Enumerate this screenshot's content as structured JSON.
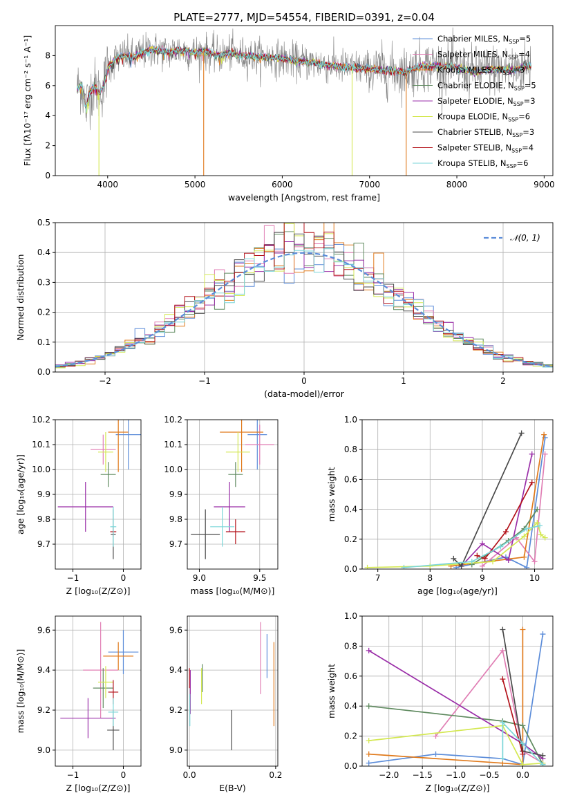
{
  "figure_title": "PLATE=2777, MJD=54554, FIBERID=0391, z=0.04",
  "model_colors": {
    "Chabrier MILES": "#5b8cd9",
    "Salpeter MILES": "#e07eb4",
    "Kroupa MILES": "#e07a1c",
    "Chabrier ELODIE": "#5f8a5f",
    "Salpeter ELODIE": "#9a2ea8",
    "Kroupa ELODIE": "#d4e852",
    "Chabrier STELIB": "#4a4a4a",
    "Salpeter STELIB": "#b3121a",
    "Kroupa STELIB": "#7ad6d8",
    "data": "#808080"
  },
  "chart_data": [
    {
      "id": "spectrum",
      "type": "line",
      "xlabel": "wavelength [Angstrom, rest frame]",
      "ylabel": "Flux [fλ10⁻¹⁷ erg cm⁻² s⁻¹ A⁻¹]",
      "xlim": [
        3400,
        9100
      ],
      "ylim": [
        0,
        10
      ],
      "xticks": [
        4000,
        5000,
        6000,
        7000,
        8000,
        9000
      ],
      "yticks": [
        0,
        2,
        4,
        6,
        8
      ],
      "legend_position": "right",
      "legend": [
        {
          "label": "Chabrier MILES",
          "nssp": "5"
        },
        {
          "label": "Salpeter MILES",
          "nssp": "4"
        },
        {
          "label": "Kroupa MILES",
          "nssp": "3"
        },
        {
          "label": "Chabrier ELODIE",
          "nssp": "5"
        },
        {
          "label": "Salpeter ELODIE",
          "nssp": "3"
        },
        {
          "label": "Kroupa ELODIE",
          "nssp": "6"
        },
        {
          "label": "Chabrier STELIB",
          "nssp": "3"
        },
        {
          "label": "Salpeter STELIB",
          "nssp": "4"
        },
        {
          "label": "Kroupa STELIB",
          "nssp": "6"
        }
      ],
      "continuum": {
        "x": [
          3650,
          3700,
          3750,
          3800,
          3850,
          3900,
          3950,
          4000,
          4100,
          4200,
          4300,
          4400,
          4500,
          4600,
          4700,
          4800,
          4900,
          5000,
          5100,
          5200,
          5300,
          5400,
          5500,
          5600,
          5800,
          6000,
          6200,
          6400,
          6600,
          6800,
          7000,
          7200,
          7400,
          7600,
          7800,
          8000,
          8200,
          8400,
          8600,
          8800
        ],
        "y": [
          5.8,
          6.1,
          4.5,
          5.6,
          6.0,
          5.5,
          5.9,
          7.2,
          7.8,
          8.0,
          7.9,
          8.2,
          8.4,
          8.3,
          8.2,
          8.4,
          8.3,
          8.2,
          8.3,
          8.1,
          8.0,
          8.2,
          8.0,
          8.0,
          7.9,
          7.8,
          7.6,
          7.5,
          7.3,
          7.2,
          7.1,
          7.0,
          6.9,
          7.3,
          7.3,
          7.2,
          6.9,
          7.1,
          7.0,
          7.3
        ]
      },
      "noise_amplitude": 0.6
    },
    {
      "id": "residuals",
      "type": "bar",
      "xlabel": "(data-model)/error",
      "ylabel": "Normed distribution",
      "xlim": [
        -2.5,
        2.5
      ],
      "ylim": [
        0,
        0.5
      ],
      "xticks": [
        -2,
        -1,
        0,
        1,
        2
      ],
      "yticks": [
        0.0,
        0.1,
        0.2,
        0.3,
        0.4,
        0.5
      ],
      "bin_width": 0.1,
      "bin_start": -2.5,
      "legend": "𝒩(0, 1)",
      "legend_position": "top-right",
      "reference_curve": "normal(0,1)"
    },
    {
      "id": "age-vs-Z",
      "type": "scatter",
      "xlabel": "Z [log₁₀(Z/Z⊙)]",
      "ylabel": "age  [log₁₀(age/yr)]",
      "xlim": [
        -1.35,
        0.35
      ],
      "ylim": [
        9.6,
        10.2
      ],
      "xticks": [
        -1,
        0
      ],
      "yticks": [
        9.7,
        9.8,
        9.9,
        10.0,
        10.1,
        10.2
      ],
      "points": [
        {
          "model": "Chabrier MILES",
          "x": 0.1,
          "xerr": 0.25,
          "y": 10.14,
          "yerr": 0.14
        },
        {
          "model": "Salpeter MILES",
          "x": -0.4,
          "xerr": 0.25,
          "y": 10.08,
          "yerr": 0.06
        },
        {
          "model": "Kroupa MILES",
          "x": -0.1,
          "xerr": 0.2,
          "y": 10.15,
          "yerr": 0.16
        },
        {
          "model": "Chabrier ELODIE",
          "x": -0.3,
          "xerr": 0.15,
          "y": 9.98,
          "yerr": 0.05
        },
        {
          "model": "Salpeter ELODIE",
          "x": -0.75,
          "xerr": 0.55,
          "y": 9.85,
          "yerr": 0.1
        },
        {
          "model": "Kroupa ELODIE",
          "x": -0.35,
          "xerr": 0.15,
          "y": 10.07,
          "yerr": 0.08
        },
        {
          "model": "Chabrier STELIB",
          "x": -0.2,
          "xerr": 0.05,
          "y": 9.74,
          "yerr": 0.1
        },
        {
          "model": "Salpeter STELIB",
          "x": -0.2,
          "xerr": 0.06,
          "y": 9.75,
          "yerr": 0.02
        },
        {
          "model": "Kroupa STELIB",
          "x": -0.2,
          "xerr": 0.06,
          "y": 9.77,
          "yerr": 0.08
        }
      ]
    },
    {
      "id": "age-vs-mass",
      "type": "scatter",
      "xlabel": "mass [log₁₀(M/M⊙)]",
      "ylabel": "",
      "xlim": [
        8.9,
        9.65
      ],
      "ylim": [
        9.6,
        10.2
      ],
      "xticks": [
        9.0,
        9.5
      ],
      "yticks": [
        9.7,
        9.8,
        9.9,
        10.0,
        10.1,
        10.2
      ],
      "points": [
        {
          "model": "Chabrier MILES",
          "x": 9.48,
          "xerr": 0.08,
          "y": 10.14,
          "yerr": 0.14
        },
        {
          "model": "Salpeter MILES",
          "x": 9.5,
          "xerr": 0.12,
          "y": 10.1,
          "yerr": 0.08
        },
        {
          "model": "Kroupa MILES",
          "x": 9.35,
          "xerr": 0.18,
          "y": 10.15,
          "yerr": 0.16
        },
        {
          "model": "Chabrier ELODIE",
          "x": 9.3,
          "xerr": 0.06,
          "y": 9.98,
          "yerr": 0.05
        },
        {
          "model": "Salpeter ELODIE",
          "x": 9.25,
          "xerr": 0.13,
          "y": 9.85,
          "yerr": 0.1
        },
        {
          "model": "Kroupa ELODIE",
          "x": 9.32,
          "xerr": 0.1,
          "y": 10.07,
          "yerr": 0.08
        },
        {
          "model": "Chabrier STELIB",
          "x": 9.05,
          "xerr": 0.12,
          "y": 9.74,
          "yerr": 0.1
        },
        {
          "model": "Salpeter STELIB",
          "x": 9.3,
          "xerr": 0.08,
          "y": 9.75,
          "yerr": 0.05
        },
        {
          "model": "Kroupa STELIB",
          "x": 9.19,
          "xerr": 0.1,
          "y": 9.77,
          "yerr": 0.08
        }
      ]
    },
    {
      "id": "weight-vs-age",
      "type": "line",
      "xlabel": "age  [log₁₀(age/yr)]",
      "ylabel": "mass weight",
      "xlim": [
        6.7,
        10.35
      ],
      "ylim": [
        0,
        1
      ],
      "xticks": [
        7,
        8,
        9,
        10
      ],
      "yticks": [
        0.0,
        0.2,
        0.4,
        0.6,
        0.8,
        1.0
      ],
      "series": [
        {
          "model": "Chabrier MILES",
          "x": [
            8.5,
            9.45,
            9.85,
            10.2
          ],
          "y": [
            0.01,
            0.08,
            0.01,
            0.88
          ]
        },
        {
          "model": "Salpeter MILES",
          "x": [
            9.0,
            9.65,
            10.0,
            10.2
          ],
          "y": [
            0.02,
            0.21,
            0.05,
            0.77
          ]
        },
        {
          "model": "Kroupa MILES",
          "x": [
            8.4,
            9.8,
            10.18
          ],
          "y": [
            0.02,
            0.08,
            0.9
          ]
        },
        {
          "model": "Chabrier ELODIE",
          "x": [
            8.8,
            9.5,
            9.8,
            10.05
          ],
          "y": [
            0.03,
            0.19,
            0.27,
            0.4
          ]
        },
        {
          "model": "Salpeter ELODIE",
          "x": [
            8.6,
            9.0,
            9.5,
            9.95
          ],
          "y": [
            0.02,
            0.17,
            0.06,
            0.77
          ]
        },
        {
          "model": "Kroupa ELODIE",
          "x": [
            6.8,
            8.0,
            9.2,
            9.8,
            10.05,
            10.12,
            10.2
          ],
          "y": [
            0.01,
            0.02,
            0.05,
            0.22,
            0.31,
            0.23,
            0.21
          ]
        },
        {
          "model": "Chabrier STELIB",
          "x": [
            8.45,
            8.6,
            9.75
          ],
          "y": [
            0.07,
            0.02,
            0.91
          ]
        },
        {
          "model": "Salpeter STELIB",
          "x": [
            8.9,
            9.05,
            9.45,
            9.95
          ],
          "y": [
            0.09,
            0.07,
            0.25,
            0.58
          ]
        },
        {
          "model": "Kroupa STELIB",
          "x": [
            7.5,
            8.8,
            9.35,
            9.85,
            10.1
          ],
          "y": [
            0.01,
            0.05,
            0.15,
            0.27,
            0.29
          ]
        }
      ]
    },
    {
      "id": "mass-vs-Z",
      "type": "scatter",
      "xlabel": "Z [log₁₀(Z/Z⊙)]",
      "ylabel": "mass [log₁₀(M/M⊙)]",
      "xlim": [
        -1.35,
        0.35
      ],
      "ylim": [
        8.92,
        9.67
      ],
      "xticks": [
        -1,
        0
      ],
      "yticks": [
        9.0,
        9.2,
        9.4,
        9.6
      ],
      "points": [
        {
          "model": "Chabrier MILES",
          "x": 0.0,
          "xerr": 0.3,
          "y": 9.49,
          "yerr": 0.11
        },
        {
          "model": "Salpeter MILES",
          "x": -0.45,
          "xerr": 0.35,
          "y": 9.4,
          "yerr": 0.24
        },
        {
          "model": "Kroupa MILES",
          "x": -0.1,
          "xerr": 0.3,
          "y": 9.47,
          "yerr": 0.07
        },
        {
          "model": "Chabrier ELODIE",
          "x": -0.4,
          "xerr": 0.2,
          "y": 9.31,
          "yerr": 0.1
        },
        {
          "model": "Salpeter ELODIE",
          "x": -0.7,
          "xerr": 0.55,
          "y": 9.16,
          "yerr": 0.1
        },
        {
          "model": "Kroupa ELODIE",
          "x": -0.35,
          "xerr": 0.15,
          "y": 9.34,
          "yerr": 0.08
        },
        {
          "model": "Chabrier STELIB",
          "x": -0.2,
          "xerr": 0.12,
          "y": 9.1,
          "yerr": 0.1
        },
        {
          "model": "Salpeter STELIB",
          "x": -0.2,
          "xerr": 0.1,
          "y": 9.29,
          "yerr": 0.06
        },
        {
          "model": "Kroupa STELIB",
          "x": -0.2,
          "xerr": 0.1,
          "y": 9.19,
          "yerr": 0.07
        }
      ]
    },
    {
      "id": "mass-vs-ebv",
      "type": "scatter",
      "xlabel": "E(B-V)",
      "ylabel": "",
      "xlim": [
        -0.005,
        0.205
      ],
      "ylim": [
        8.92,
        9.67
      ],
      "xticks": [
        0.0,
        0.2
      ],
      "yticks": [
        9.0,
        9.2,
        9.4,
        9.6
      ],
      "points": [
        {
          "model": "Chabrier MILES",
          "x": 0.18,
          "y": 9.47,
          "yerr": 0.11
        },
        {
          "model": "Salpeter MILES",
          "x": 0.165,
          "y": 9.46,
          "yerr": 0.18
        },
        {
          "model": "Kroupa MILES",
          "x": 0.196,
          "y": 9.33,
          "yerr": 0.21
        },
        {
          "model": "Chabrier ELODIE",
          "x": 0.03,
          "y": 9.36,
          "yerr": 0.07
        },
        {
          "model": "Salpeter ELODIE",
          "x": 0.002,
          "y": 9.29,
          "yerr": 0.11
        },
        {
          "model": "Kroupa ELODIE",
          "x": 0.028,
          "y": 9.32,
          "yerr": 0.09
        },
        {
          "model": "Chabrier STELIB",
          "x": 0.098,
          "y": 9.1,
          "yerr": 0.1
        },
        {
          "model": "Salpeter STELIB",
          "x": 0.0,
          "y": 9.36,
          "yerr": 0.05
        },
        {
          "model": "Kroupa STELIB",
          "x": 0.001,
          "y": 9.2,
          "yerr": 0.08
        }
      ]
    },
    {
      "id": "weight-vs-Z",
      "type": "line",
      "xlabel": "Z [log₁₀(Z/Z⊙)]",
      "ylabel": "mass weight",
      "xlim": [
        -2.4,
        0.45
      ],
      "ylim": [
        0,
        1
      ],
      "xticks": [
        -2.0,
        -1.5,
        -1.0,
        -0.5,
        0.0
      ],
      "yticks": [
        0.0,
        0.2,
        0.4,
        0.6,
        0.8,
        1.0
      ],
      "series": [
        {
          "model": "Chabrier MILES",
          "x": [
            -2.3,
            -1.3,
            -0.3,
            0.0,
            0.3
          ],
          "y": [
            0.02,
            0.08,
            0.05,
            0.01,
            0.88
          ]
        },
        {
          "model": "Salpeter MILES",
          "x": [
            -1.3,
            -0.3,
            0.0,
            0.3
          ],
          "y": [
            0.2,
            0.77,
            0.1,
            0.02
          ]
        },
        {
          "model": "Kroupa MILES",
          "x": [
            -2.3,
            -0.3,
            0.0,
            0.0
          ],
          "y": [
            0.08,
            0.02,
            0.01,
            0.91
          ]
        },
        {
          "model": "Chabrier ELODIE",
          "x": [
            -2.3,
            -0.3,
            0.0,
            0.3
          ],
          "y": [
            0.4,
            0.3,
            0.27,
            0.01
          ]
        },
        {
          "model": "Salpeter ELODIE",
          "x": [
            -2.3,
            0.0,
            0.3
          ],
          "y": [
            0.77,
            0.15,
            0.05
          ]
        },
        {
          "model": "Kroupa ELODIE",
          "x": [
            -2.3,
            -0.3,
            0.0,
            0.3
          ],
          "y": [
            0.17,
            0.27,
            0.01,
            0.02
          ]
        },
        {
          "model": "Chabrier STELIB",
          "x": [
            -0.3,
            0.0,
            0.3
          ],
          "y": [
            0.91,
            0.1,
            0.07
          ]
        },
        {
          "model": "Salpeter STELIB",
          "x": [
            -0.3,
            0.0
          ],
          "y": [
            0.58,
            0.08
          ]
        },
        {
          "model": "Kroupa STELIB",
          "x": [
            -0.3,
            -0.3,
            0.0,
            0.3
          ],
          "y": [
            0.05,
            0.29,
            0.15,
            0.01
          ]
        }
      ]
    }
  ]
}
